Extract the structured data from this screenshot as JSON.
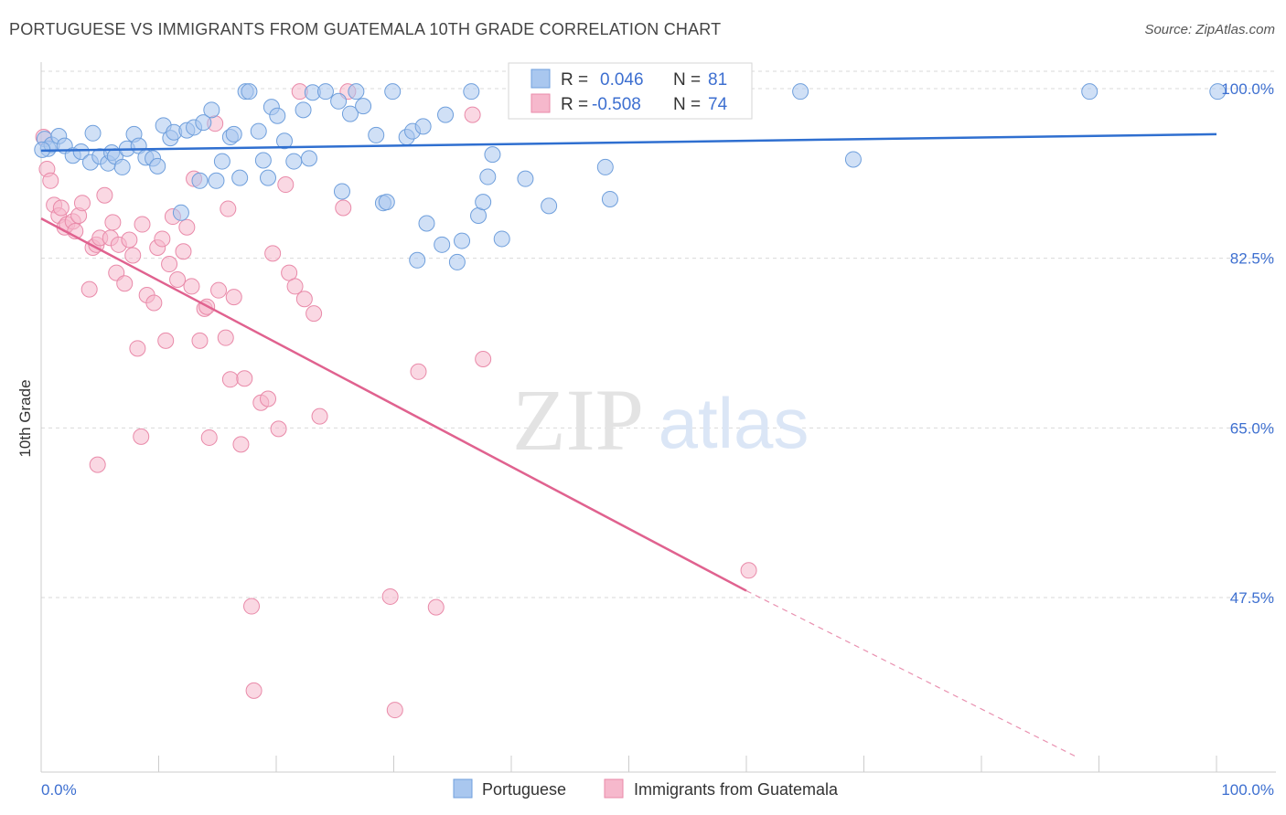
{
  "title": "PORTUGUESE VS IMMIGRANTS FROM GUATEMALA 10TH GRADE CORRELATION CHART",
  "source": "Source: ZipAtlas.com",
  "watermark": {
    "zip": "ZIP",
    "atlas": "atlas"
  },
  "colors": {
    "blue_fill": "#a9c7ef",
    "blue_stroke": "#6f9fdc",
    "blue_line": "#2f6fd0",
    "pink_fill": "#f6b8cc",
    "pink_stroke": "#e98aa9",
    "pink_line": "#e0628f",
    "axis_label": "#3d6fd0",
    "grid": "#d9d9d9"
  },
  "legend": {
    "r_label": "R =",
    "n_label": "N =",
    "blue_r": "0.046",
    "blue_n": "81",
    "pink_r": "-0.508",
    "pink_n": "74"
  },
  "chart_data": {
    "type": "scatter",
    "title": "PORTUGUESE VS IMMIGRANTS FROM GUATEMALA 10TH GRADE CORRELATION CHART",
    "xlabel": "",
    "ylabel": "10th Grade",
    "xlim": [
      0,
      100
    ],
    "ylim": [
      31,
      102
    ],
    "x_tick_labels": [
      "0.0%",
      "100.0%"
    ],
    "y_ticks": [
      47.5,
      65.0,
      82.5,
      100.0
    ],
    "y_tick_labels": [
      "47.5%",
      "65.0%",
      "82.5%",
      "100.0%"
    ],
    "grid": true,
    "legend_position": "top-center",
    "series": [
      {
        "name": "Portuguese",
        "R": 0.046,
        "N": 81,
        "trend": {
          "x": [
            0,
            100
          ],
          "y": [
            93.6,
            95.3
          ]
        },
        "points": [
          [
            0.3,
            94.8
          ],
          [
            0.6,
            93.8
          ],
          [
            0.9,
            94.2
          ],
          [
            1.5,
            95.1
          ],
          [
            2.0,
            94.1
          ],
          [
            2.7,
            93.1
          ],
          [
            3.4,
            93.5
          ],
          [
            4.2,
            92.4
          ],
          [
            4.4,
            95.4
          ],
          [
            5.0,
            93.0
          ],
          [
            5.7,
            92.3
          ],
          [
            6.0,
            93.4
          ],
          [
            6.3,
            93.0
          ],
          [
            6.9,
            91.9
          ],
          [
            7.3,
            93.8
          ],
          [
            7.9,
            95.3
          ],
          [
            8.3,
            94.1
          ],
          [
            8.9,
            92.9
          ],
          [
            9.5,
            92.8
          ],
          [
            9.9,
            92.0
          ],
          [
            10.4,
            96.2
          ],
          [
            11.0,
            94.9
          ],
          [
            11.3,
            95.5
          ],
          [
            11.9,
            87.2
          ],
          [
            12.4,
            95.7
          ],
          [
            13.0,
            96.0
          ],
          [
            13.5,
            90.5
          ],
          [
            13.8,
            96.5
          ],
          [
            14.5,
            97.8
          ],
          [
            14.9,
            90.5
          ],
          [
            15.4,
            92.5
          ],
          [
            16.1,
            95.0
          ],
          [
            16.4,
            95.3
          ],
          [
            16.9,
            90.8
          ],
          [
            17.4,
            99.7
          ],
          [
            17.7,
            99.7
          ],
          [
            18.5,
            95.6
          ],
          [
            18.9,
            92.6
          ],
          [
            19.3,
            90.8
          ],
          [
            19.6,
            98.1
          ],
          [
            20.1,
            97.2
          ],
          [
            20.7,
            94.6
          ],
          [
            21.5,
            92.5
          ],
          [
            22.3,
            97.8
          ],
          [
            22.8,
            92.8
          ],
          [
            23.1,
            99.6
          ],
          [
            24.2,
            99.7
          ],
          [
            25.3,
            98.7
          ],
          [
            25.6,
            89.4
          ],
          [
            26.3,
            97.4
          ],
          [
            26.8,
            99.7
          ],
          [
            27.4,
            98.2
          ],
          [
            28.5,
            95.2
          ],
          [
            29.1,
            88.2
          ],
          [
            29.4,
            88.3
          ],
          [
            29.9,
            99.7
          ],
          [
            31.1,
            95.0
          ],
          [
            31.6,
            95.6
          ],
          [
            32.0,
            82.3
          ],
          [
            32.5,
            96.1
          ],
          [
            32.8,
            86.1
          ],
          [
            34.1,
            83.9
          ],
          [
            34.4,
            97.3
          ],
          [
            35.4,
            82.1
          ],
          [
            35.8,
            84.3
          ],
          [
            36.6,
            99.7
          ],
          [
            37.2,
            86.9
          ],
          [
            37.6,
            88.3
          ],
          [
            38.0,
            90.9
          ],
          [
            38.4,
            93.2
          ],
          [
            39.2,
            84.5
          ],
          [
            41.2,
            90.7
          ],
          [
            43.2,
            87.9
          ],
          [
            45.8,
            99.7
          ],
          [
            48.0,
            91.9
          ],
          [
            48.4,
            88.6
          ],
          [
            64.6,
            99.7
          ],
          [
            69.1,
            92.7
          ],
          [
            89.2,
            99.7
          ],
          [
            100.1,
            99.7
          ],
          [
            0.1,
            93.7
          ]
        ]
      },
      {
        "name": "Immigrants from Guatemala",
        "R": -0.508,
        "N": 74,
        "trend": {
          "x": [
            0,
            60
          ],
          "y": [
            86.6,
            48.2
          ]
        },
        "trend_dashed": {
          "x": [
            60,
            88.2
          ],
          "y": [
            48.2,
            31.0
          ]
        },
        "points": [
          [
            0.2,
            95.0
          ],
          [
            0.5,
            91.7
          ],
          [
            0.8,
            90.5
          ],
          [
            1.1,
            88.0
          ],
          [
            1.5,
            86.9
          ],
          [
            1.7,
            87.7
          ],
          [
            2.0,
            85.7
          ],
          [
            2.2,
            86.0
          ],
          [
            2.7,
            86.3
          ],
          [
            2.9,
            85.3
          ],
          [
            3.2,
            86.9
          ],
          [
            3.5,
            88.2
          ],
          [
            4.1,
            79.3
          ],
          [
            4.4,
            83.6
          ],
          [
            4.7,
            83.9
          ],
          [
            5.0,
            84.6
          ],
          [
            5.4,
            89.0
          ],
          [
            5.9,
            84.6
          ],
          [
            6.1,
            86.2
          ],
          [
            6.4,
            81.0
          ],
          [
            6.6,
            83.9
          ],
          [
            7.1,
            79.9
          ],
          [
            7.5,
            84.4
          ],
          [
            7.8,
            82.8
          ],
          [
            8.2,
            73.2
          ],
          [
            8.6,
            86.0
          ],
          [
            9.0,
            78.7
          ],
          [
            9.6,
            77.9
          ],
          [
            9.9,
            83.6
          ],
          [
            10.3,
            84.5
          ],
          [
            10.6,
            74.0
          ],
          [
            10.9,
            81.9
          ],
          [
            11.2,
            86.8
          ],
          [
            11.6,
            80.3
          ],
          [
            12.1,
            83.2
          ],
          [
            12.4,
            85.7
          ],
          [
            12.8,
            79.6
          ],
          [
            13.0,
            90.7
          ],
          [
            13.5,
            74.0
          ],
          [
            13.9,
            77.3
          ],
          [
            14.1,
            77.5
          ],
          [
            14.3,
            64.0
          ],
          [
            14.8,
            96.4
          ],
          [
            15.1,
            79.2
          ],
          [
            15.7,
            74.3
          ],
          [
            15.9,
            87.6
          ],
          [
            16.1,
            70.0
          ],
          [
            16.4,
            78.5
          ],
          [
            17.0,
            63.3
          ],
          [
            17.3,
            70.1
          ],
          [
            17.9,
            46.6
          ],
          [
            18.1,
            37.9
          ],
          [
            18.7,
            67.6
          ],
          [
            19.3,
            68.0
          ],
          [
            19.7,
            83.0
          ],
          [
            20.2,
            64.9
          ],
          [
            20.8,
            90.1
          ],
          [
            21.1,
            81.0
          ],
          [
            21.6,
            79.6
          ],
          [
            22.4,
            78.3
          ],
          [
            23.2,
            76.8
          ],
          [
            23.7,
            66.2
          ],
          [
            25.7,
            87.7
          ],
          [
            26.1,
            99.7
          ],
          [
            29.7,
            47.6
          ],
          [
            30.1,
            35.9
          ],
          [
            32.1,
            70.8
          ],
          [
            33.6,
            46.5
          ],
          [
            36.7,
            97.3
          ],
          [
            37.6,
            72.1
          ],
          [
            60.2,
            50.3
          ],
          [
            4.8,
            61.2
          ],
          [
            8.5,
            64.1
          ],
          [
            22.0,
            99.7
          ]
        ]
      }
    ]
  },
  "bottom_legend": {
    "blue_label": "Portuguese",
    "pink_label": "Immigrants from Guatemala"
  }
}
